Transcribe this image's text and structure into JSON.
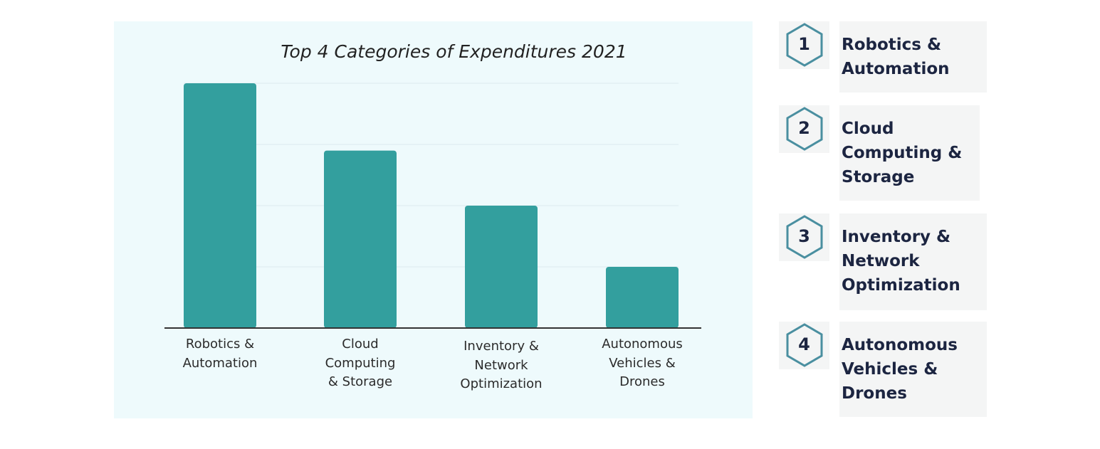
{
  "chart_data": {
    "type": "bar",
    "title": "Top 4 Categories of Expenditures 2021",
    "categories": [
      "Robotics &\nAutomation",
      "Cloud\nComputing\n& Storage",
      "Inventory &\nNetwork\nOptimization",
      "Autonomous\nVehicles &\nDrones"
    ],
    "values": [
      4,
      2.9,
      2,
      1
    ],
    "xlabel": "",
    "ylabel": "",
    "ylim": [
      0,
      4
    ],
    "grid": true,
    "bar_color": "#339f9e"
  },
  "legend": {
    "items": [
      {
        "number": "1",
        "label": "Robotics &\nAutomation"
      },
      {
        "number": "2",
        "label": "Cloud\nComputing &\nStorage"
      },
      {
        "number": "3",
        "label": "Inventory &\nNetwork\nOptimization"
      },
      {
        "number": "4",
        "label": "Autonomous\nVehicles &\nDrones"
      }
    ],
    "hex_color": "#4a8fa0",
    "text_color": "#1c2541"
  }
}
